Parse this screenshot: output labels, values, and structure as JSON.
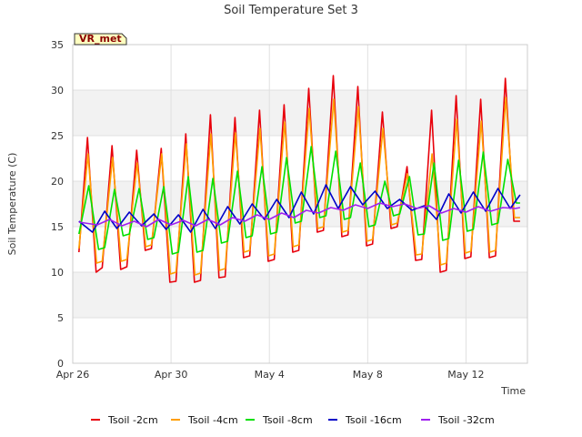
{
  "chart_data": {
    "type": "line",
    "title": "Soil Temperature Set 3",
    "xlabel": "Time",
    "ylabel": "Soil Temperature (C)",
    "ylim": [
      0,
      35
    ],
    "xlim": [
      0,
      18.5
    ],
    "yticks": [
      0,
      5,
      10,
      15,
      20,
      25,
      30,
      35
    ],
    "xticks": [
      {
        "label": "Apr 26",
        "day": 0
      },
      {
        "label": "Apr 30",
        "day": 4
      },
      {
        "label": "May 4",
        "day": 8
      },
      {
        "label": "May 8",
        "day": 12
      },
      {
        "label": "May 12",
        "day": 16
      }
    ],
    "grid": true,
    "legend_position": "bottom",
    "annotation": "VR_met",
    "x_unit": "days since Apr 26",
    "series": [
      {
        "name": "Tsoil -2cm",
        "color": "#e8000b",
        "x": [
          0.25,
          0.6,
          0.95,
          1.2,
          1.6,
          1.95,
          2.2,
          2.6,
          2.95,
          3.2,
          3.6,
          3.95,
          4.2,
          4.6,
          4.95,
          5.2,
          5.6,
          5.95,
          6.2,
          6.6,
          6.95,
          7.2,
          7.6,
          7.95,
          8.2,
          8.6,
          8.95,
          9.2,
          9.6,
          9.95,
          10.2,
          10.6,
          10.95,
          11.2,
          11.6,
          11.95,
          12.2,
          12.6,
          12.95,
          13.2,
          13.6,
          13.95,
          14.2,
          14.6,
          14.95,
          15.2,
          15.6,
          15.95,
          16.2,
          16.6,
          16.95,
          17.2,
          17.6,
          17.95,
          18.2
        ],
        "y": [
          12.2,
          24.8,
          10.0,
          10.5,
          23.9,
          10.3,
          10.6,
          23.4,
          12.4,
          12.6,
          23.6,
          8.9,
          9.0,
          25.2,
          8.9,
          9.1,
          27.3,
          9.4,
          9.5,
          27.0,
          11.6,
          11.8,
          27.8,
          11.2,
          11.4,
          28.4,
          12.2,
          12.4,
          30.2,
          14.4,
          14.6,
          31.6,
          13.9,
          14.1,
          30.4,
          12.9,
          13.1,
          27.6,
          14.8,
          15.0,
          21.6,
          11.3,
          11.4,
          27.8,
          10.0,
          10.2,
          29.4,
          11.5,
          11.7,
          29.0,
          11.6,
          11.8,
          31.3,
          15.6,
          15.6
        ]
      },
      {
        "name": "Tsoil -4cm",
        "color": "#ff9f00",
        "x": [
          0.25,
          0.62,
          0.97,
          1.2,
          1.62,
          1.97,
          2.2,
          2.62,
          2.97,
          3.2,
          3.62,
          3.97,
          4.2,
          4.62,
          4.97,
          5.2,
          5.62,
          5.97,
          6.2,
          6.62,
          6.97,
          7.2,
          7.62,
          7.97,
          8.2,
          8.62,
          8.97,
          9.2,
          9.62,
          9.97,
          10.2,
          10.62,
          10.97,
          11.2,
          11.62,
          11.97,
          12.2,
          12.62,
          12.97,
          13.2,
          13.62,
          13.97,
          14.2,
          14.62,
          14.97,
          15.2,
          15.62,
          15.97,
          16.2,
          16.62,
          16.97,
          17.2,
          17.62,
          17.97,
          18.2
        ],
        "y": [
          12.6,
          23.0,
          11.0,
          11.2,
          22.6,
          11.2,
          11.4,
          22.0,
          12.8,
          13.0,
          23.0,
          9.8,
          10.0,
          24.1,
          9.7,
          9.9,
          25.2,
          10.2,
          10.4,
          25.3,
          12.2,
          12.4,
          25.8,
          11.8,
          12.0,
          26.5,
          12.8,
          13.0,
          28.0,
          14.8,
          15.0,
          29.0,
          14.4,
          14.6,
          28.2,
          13.4,
          13.6,
          25.8,
          15.2,
          15.4,
          20.8,
          11.9,
          12.0,
          23.0,
          10.8,
          11.0,
          26.8,
          12.1,
          12.3,
          26.6,
          12.2,
          12.4,
          29.2,
          16.0,
          16.0
        ]
      },
      {
        "name": "Tsoil -8cm",
        "color": "#00e000",
        "x": [
          0.25,
          0.65,
          1.05,
          1.3,
          1.7,
          2.05,
          2.3,
          2.7,
          3.05,
          3.3,
          3.7,
          4.05,
          4.3,
          4.7,
          5.05,
          5.3,
          5.7,
          6.05,
          6.3,
          6.7,
          7.05,
          7.3,
          7.7,
          8.05,
          8.3,
          8.7,
          9.05,
          9.3,
          9.7,
          10.05,
          10.3,
          10.7,
          11.05,
          11.3,
          11.7,
          12.05,
          12.3,
          12.7,
          13.05,
          13.3,
          13.7,
          14.05,
          14.3,
          14.7,
          15.05,
          15.3,
          15.7,
          16.05,
          16.3,
          16.7,
          17.05,
          17.3,
          17.7,
          18.05,
          18.2
        ],
        "y": [
          14.2,
          19.5,
          12.5,
          12.7,
          19.1,
          14.0,
          14.2,
          19.2,
          13.6,
          13.8,
          19.4,
          12.0,
          12.2,
          20.5,
          12.2,
          12.4,
          20.3,
          13.2,
          13.4,
          21.1,
          13.8,
          14.0,
          21.6,
          14.2,
          14.4,
          22.6,
          15.4,
          15.6,
          23.8,
          16.0,
          16.2,
          23.3,
          15.8,
          16.0,
          22.0,
          15.0,
          15.2,
          20.0,
          16.2,
          16.4,
          20.5,
          14.1,
          14.2,
          22.0,
          13.5,
          13.7,
          22.3,
          14.5,
          14.7,
          23.2,
          15.2,
          15.4,
          22.4,
          17.6,
          17.6
        ]
      },
      {
        "name": "Tsoil -16cm",
        "color": "#0000c8",
        "x": [
          0.25,
          0.8,
          1.3,
          1.8,
          2.3,
          2.8,
          3.3,
          3.8,
          4.3,
          4.8,
          5.3,
          5.8,
          6.3,
          6.8,
          7.3,
          7.8,
          8.3,
          8.8,
          9.3,
          9.8,
          10.3,
          10.8,
          11.3,
          11.8,
          12.3,
          12.8,
          13.3,
          13.8,
          14.3,
          14.8,
          15.3,
          15.8,
          16.3,
          16.8,
          17.3,
          17.8,
          18.2
        ],
        "y": [
          15.6,
          14.4,
          16.7,
          14.8,
          16.6,
          15.1,
          16.4,
          14.7,
          16.3,
          14.4,
          16.9,
          14.8,
          17.2,
          15.3,
          17.5,
          15.8,
          18.0,
          16.0,
          18.8,
          16.4,
          19.6,
          17.0,
          19.4,
          17.4,
          18.9,
          17.0,
          18.0,
          16.8,
          17.3,
          15.8,
          18.6,
          16.5,
          18.8,
          16.7,
          19.2,
          17.0,
          18.5
        ]
      },
      {
        "name": "Tsoil -32cm",
        "color": "#a020f0",
        "x": [
          0.25,
          1.0,
          1.5,
          2.0,
          2.5,
          3.0,
          3.5,
          4.0,
          4.5,
          5.0,
          5.5,
          6.0,
          6.5,
          7.0,
          7.5,
          8.0,
          8.5,
          9.0,
          9.5,
          10.0,
          10.5,
          11.0,
          11.5,
          12.0,
          12.5,
          13.0,
          13.5,
          14.0,
          14.5,
          15.0,
          15.5,
          16.0,
          16.5,
          17.0,
          17.5,
          18.0,
          18.2
        ],
        "y": [
          15.5,
          15.2,
          15.8,
          15.1,
          15.6,
          15.0,
          15.8,
          15.2,
          15.7,
          15.1,
          15.8,
          15.2,
          16.0,
          15.6,
          16.3,
          15.8,
          16.5,
          16.0,
          16.8,
          16.5,
          17.1,
          16.8,
          17.4,
          17.0,
          17.6,
          17.2,
          17.5,
          17.0,
          17.3,
          16.5,
          17.0,
          16.6,
          17.2,
          16.7,
          17.1,
          17.0,
          17.1
        ]
      }
    ]
  }
}
